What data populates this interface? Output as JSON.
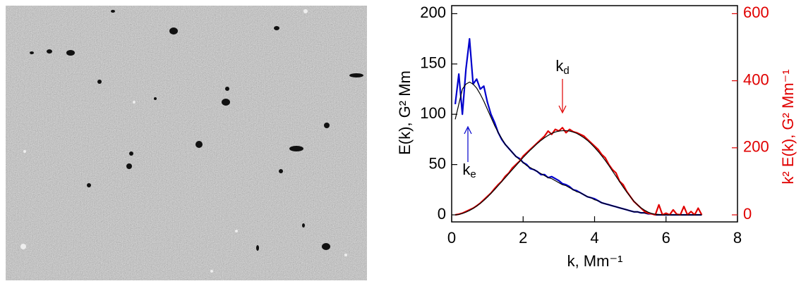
{
  "chart_data": {
    "type": "line",
    "xlabel": "k, Mm⁻¹",
    "ylabel": "E(k), G² Mm",
    "y2label": "k² E(k), G² Mm⁻¹",
    "annotations": [
      {
        "main": "k",
        "sub": "d",
        "color": "#e00000"
      },
      {
        "main": "k",
        "sub": "e",
        "color": "#0000cc"
      }
    ],
    "xlim": [
      0,
      8
    ],
    "xticks": [
      0,
      2,
      4,
      6,
      8
    ],
    "ylim": [
      -7,
      208
    ],
    "yticks": [
      0,
      50,
      100,
      150,
      200
    ],
    "y2lim": [
      -21,
      624
    ],
    "y2ticks": [
      0,
      200,
      400,
      600
    ],
    "y2color": "#e00000",
    "x": [
      0.1,
      0.2,
      0.3,
      0.4,
      0.5,
      0.6,
      0.7,
      0.8,
      0.9,
      1.0,
      1.1,
      1.2,
      1.3,
      1.4,
      1.5,
      1.6,
      1.7,
      1.8,
      1.9,
      2.0,
      2.1,
      2.2,
      2.3,
      2.4,
      2.5,
      2.6,
      2.7,
      2.8,
      2.9,
      3.0,
      3.1,
      3.2,
      3.3,
      3.4,
      3.5,
      3.6,
      3.7,
      3.8,
      3.9,
      4.0,
      4.1,
      4.2,
      4.3,
      4.4,
      4.5,
      4.6,
      4.7,
      4.8,
      4.9,
      5.0,
      5.1,
      5.2,
      5.3,
      5.4,
      5.5,
      5.6,
      5.7,
      5.8,
      5.9,
      6.0,
      6.1,
      6.2,
      6.3,
      6.4,
      6.5,
      6.6,
      6.7,
      6.8,
      6.9,
      7.0
    ],
    "series": [
      {
        "color": "#0000cc",
        "width": 2.2,
        "values": [
          110,
          140,
          100,
          145,
          175,
          130,
          135,
          125,
          128,
          112,
          100,
          92,
          82,
          75,
          70,
          66,
          62,
          58,
          56,
          52,
          50,
          46,
          45,
          43,
          40,
          40,
          37,
          38,
          36,
          34,
          31,
          30,
          28,
          25,
          24,
          22,
          20,
          18,
          17,
          16,
          14,
          12,
          11,
          10,
          9,
          8,
          7,
          6,
          5,
          4,
          3,
          3,
          2,
          2,
          1,
          1,
          0,
          0,
          0,
          0,
          0,
          0,
          0,
          0,
          0,
          0,
          0,
          0,
          0,
          0
        ]
      },
      {
        "color": "#000000",
        "width": 1.2,
        "values": [
          95,
          110,
          125,
          130,
          132,
          130,
          126,
          120,
          113,
          105,
          97,
          89,
          82,
          76,
          70,
          66,
          62,
          58,
          55,
          52,
          49,
          47,
          45,
          43,
          41,
          39,
          37,
          36,
          34,
          32,
          30,
          29,
          27,
          25,
          23,
          22,
          20,
          18,
          17,
          15,
          14,
          12,
          11,
          10,
          9,
          8,
          7,
          6,
          5,
          4,
          3,
          3,
          2,
          2,
          1,
          1,
          0,
          0,
          0,
          0,
          0,
          0,
          0,
          0,
          0,
          0,
          0,
          0,
          0,
          0
        ]
      },
      {
        "color": "#e00000",
        "width": 2.2,
        "axis": "y2",
        "values": [
          0,
          2,
          5,
          10,
          15,
          20,
          27,
          35,
          45,
          55,
          65,
          78,
          90,
          100,
          115,
          125,
          140,
          150,
          160,
          175,
          185,
          195,
          205,
          215,
          225,
          235,
          250,
          240,
          255,
          250,
          260,
          245,
          255,
          248,
          245,
          240,
          235,
          225,
          215,
          205,
          195,
          180,
          170,
          150,
          135,
          125,
          100,
          90,
          70,
          55,
          40,
          30,
          20,
          10,
          5,
          3,
          0,
          30,
          0,
          5,
          0,
          15,
          2,
          0,
          25,
          0,
          10,
          0,
          20,
          0
        ]
      },
      {
        "color": "#000000",
        "width": 1.2,
        "axis": "y2",
        "values": [
          0,
          1,
          4,
          8,
          13,
          19,
          26,
          34,
          43,
          53,
          64,
          75,
          87,
          99,
          111,
          123,
          135,
          147,
          159,
          171,
          182,
          193,
          203,
          213,
          222,
          230,
          237,
          243,
          247,
          250,
          251,
          251,
          250,
          247,
          243,
          237,
          230,
          222,
          212,
          201,
          189,
          176,
          162,
          147,
          131,
          115,
          99,
          83,
          68,
          54,
          41,
          30,
          21,
          14,
          8,
          4,
          2,
          1,
          0,
          0,
          0,
          0,
          0,
          0,
          0,
          0,
          0,
          0,
          0,
          0
        ]
      }
    ]
  }
}
